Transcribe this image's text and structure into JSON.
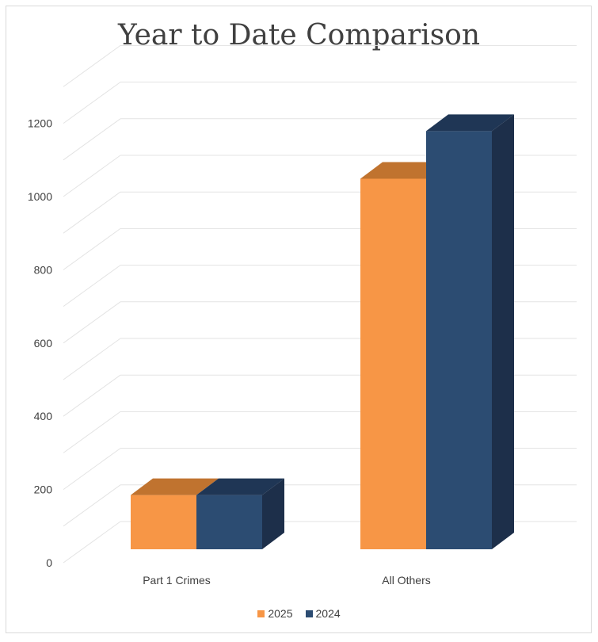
{
  "chart_data": {
    "type": "bar",
    "title": "Year to Date Comparison",
    "categories": [
      "Part 1 Crimes",
      "All Others"
    ],
    "series": [
      {
        "name": "2025",
        "values": [
          148,
          1012
        ],
        "color": "#f79646"
      },
      {
        "name": "2024",
        "values": [
          148,
          1142
        ],
        "color": "#2c4c72"
      }
    ],
    "ylim": [
      0,
      1200
    ],
    "yticks": [
      "0",
      "200",
      "400",
      "600",
      "800",
      "1000",
      "1200"
    ],
    "grid": true,
    "legend": "bottom",
    "style": "3d-column"
  }
}
